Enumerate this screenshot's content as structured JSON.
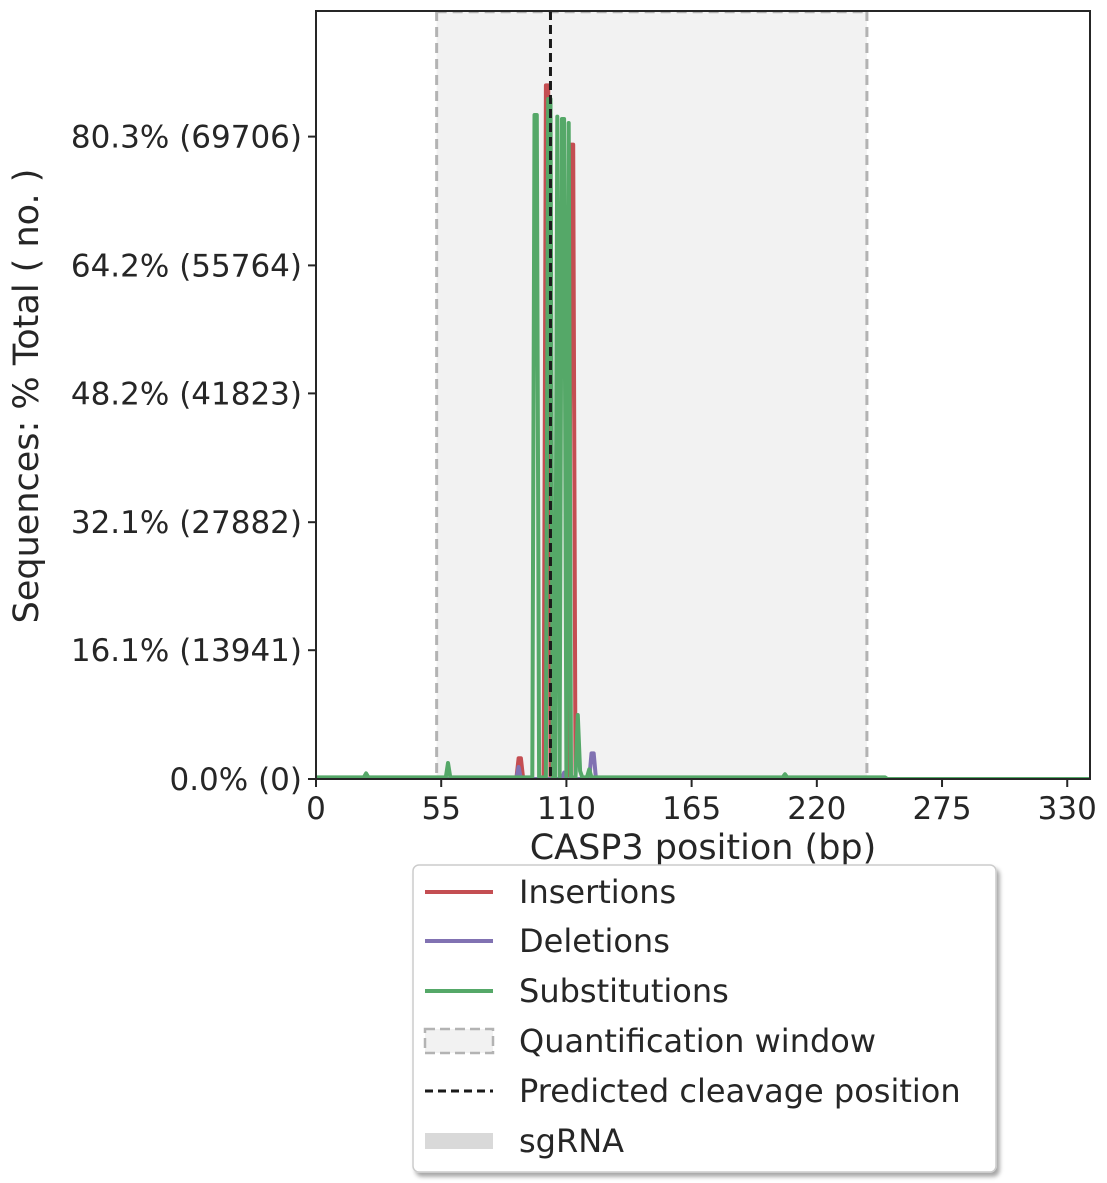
{
  "chart_data": {
    "type": "line",
    "xlabel": "CASP3 position (bp)",
    "ylabel": "Sequences: % Total ( no. )",
    "xlim": [
      0,
      340
    ],
    "ylim": [
      0,
      96
    ],
    "x_ticks": [
      0,
      55,
      110,
      165,
      220,
      275,
      330
    ],
    "x_tick_labels": [
      "0",
      "55",
      "110",
      "165",
      "220",
      "275",
      "330"
    ],
    "y_ticks": [
      0,
      16.1,
      32.1,
      48.2,
      64.2,
      80.3
    ],
    "y_tick_labels": [
      "0.0% (0)",
      "16.1% (13941)",
      "32.1% (27882)",
      "48.2% (41823)",
      "64.2% (55764)",
      "80.3% (69706)"
    ],
    "quantification_window": [
      53,
      242
    ],
    "predicted_cleavage_position": 103,
    "series": [
      {
        "name": "Insertions",
        "color": "#c44e52",
        "points": [
          [
            0,
            0
          ],
          [
            88,
            0
          ],
          [
            89,
            2.6
          ],
          [
            90,
            2.6
          ],
          [
            91,
            0
          ],
          [
            100,
            0
          ],
          [
            101,
            86.7
          ],
          [
            102,
            86.7
          ],
          [
            103,
            0
          ],
          [
            111,
            0
          ],
          [
            112,
            79.3
          ],
          [
            113,
            79.3
          ],
          [
            114,
            0
          ],
          [
            340,
            0
          ]
        ]
      },
      {
        "name": "Deletions",
        "color": "#8172b2",
        "points": [
          [
            0,
            0
          ],
          [
            88,
            0
          ],
          [
            89,
            1.5
          ],
          [
            90,
            0
          ],
          [
            108,
            0
          ],
          [
            109,
            0.8
          ],
          [
            110,
            0
          ],
          [
            120,
            0
          ],
          [
            121,
            3.2
          ],
          [
            122,
            3.2
          ],
          [
            123,
            0
          ],
          [
            340,
            0
          ]
        ]
      },
      {
        "name": "Substitutions",
        "color": "#55a868",
        "points": [
          [
            0,
            0.2
          ],
          [
            21,
            0.2
          ],
          [
            22,
            0.7
          ],
          [
            23,
            0.2
          ],
          [
            57,
            0.2
          ],
          [
            58,
            2.0
          ],
          [
            59,
            0.2
          ],
          [
            95,
            0.2
          ],
          [
            96,
            83.0
          ],
          [
            97,
            83.0
          ],
          [
            98,
            0.2
          ],
          [
            101,
            0.2
          ],
          [
            102,
            85.0
          ],
          [
            103,
            85.0
          ],
          [
            104,
            0.2
          ],
          [
            105,
            0.2
          ],
          [
            106,
            82.8
          ],
          [
            107,
            0.2
          ],
          [
            108,
            82.5
          ],
          [
            109,
            82.5
          ],
          [
            110,
            0.2
          ],
          [
            111,
            82.0
          ],
          [
            112,
            0.2
          ],
          [
            114,
            0.2
          ],
          [
            115,
            8.0
          ],
          [
            116,
            1.0
          ],
          [
            117,
            0.2
          ],
          [
            119,
            0.2
          ],
          [
            120,
            1.2
          ],
          [
            121,
            0.2
          ],
          [
            205,
            0.2
          ],
          [
            206,
            0.6
          ],
          [
            207,
            0.2
          ],
          [
            250,
            0.2
          ],
          [
            251,
            0
          ],
          [
            340,
            0
          ]
        ]
      }
    ],
    "legend": {
      "placement": "below",
      "entries": [
        "Insertions",
        "Deletions",
        "Substitutions",
        "Quantification window",
        "Predicted cleavage position",
        "sgRNA"
      ]
    }
  },
  "colors": {
    "axis": "#262626",
    "window_fill": "#f2f2f2",
    "window_edge": "#b3b3b3",
    "cleavage_line": "#1a1a1a",
    "sgrna": "#d9d9d9"
  }
}
